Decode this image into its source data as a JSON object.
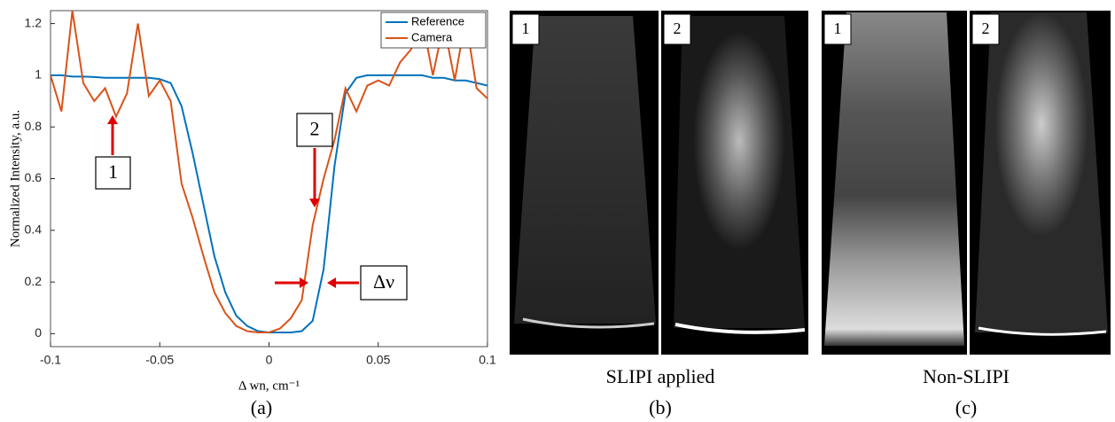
{
  "chart_data": {
    "type": "line",
    "x": [
      -0.1,
      -0.095,
      -0.09,
      -0.085,
      -0.08,
      -0.075,
      -0.07,
      -0.065,
      -0.06,
      -0.055,
      -0.05,
      -0.045,
      -0.04,
      -0.035,
      -0.03,
      -0.025,
      -0.02,
      -0.015,
      -0.01,
      -0.005,
      0,
      0.005,
      0.01,
      0.015,
      0.02,
      0.025,
      0.03,
      0.035,
      0.04,
      0.045,
      0.05,
      0.055,
      0.06,
      0.065,
      0.07,
      0.075,
      0.08,
      0.085,
      0.09,
      0.095,
      0.1
    ],
    "series": [
      {
        "name": "Reference",
        "color": "#0072bd",
        "values": [
          1.0,
          1.0,
          0.995,
          0.995,
          0.993,
          0.99,
          0.99,
          0.99,
          0.99,
          0.99,
          0.985,
          0.97,
          0.88,
          0.7,
          0.5,
          0.3,
          0.16,
          0.07,
          0.03,
          0.01,
          0.005,
          0.005,
          0.005,
          0.01,
          0.05,
          0.25,
          0.65,
          0.93,
          0.99,
          1.0,
          1.0,
          1.0,
          1.0,
          1.0,
          1.0,
          0.99,
          0.99,
          0.98,
          0.98,
          0.97,
          0.96
        ]
      },
      {
        "name": "Camera",
        "color": "#d95319",
        "values": [
          1.0,
          0.86,
          1.25,
          0.97,
          0.9,
          0.95,
          0.84,
          0.93,
          1.2,
          0.92,
          0.98,
          0.9,
          0.58,
          0.45,
          0.3,
          0.16,
          0.08,
          0.03,
          0.01,
          0.005,
          0.005,
          0.02,
          0.06,
          0.13,
          0.42,
          0.6,
          0.75,
          0.95,
          0.86,
          0.96,
          0.98,
          0.96,
          1.05,
          1.1,
          1.22,
          1.0,
          1.2,
          0.98,
          1.22,
          0.95,
          0.91
        ]
      }
    ],
    "xlim": [
      -0.1,
      0.1
    ],
    "xticks": [
      -0.1,
      -0.05,
      0,
      0.05,
      0.1
    ],
    "ylim": [
      -0.05,
      1.25
    ],
    "yticks": [
      0,
      0.2,
      0.4,
      0.6,
      0.8,
      1,
      1.2
    ],
    "xlabel": "Δ wn, cm⁻¹",
    "ylabel": "Normalized Intensity, a.u.",
    "legend": "top-right",
    "annotations": [
      "1",
      "2",
      "Δν"
    ],
    "caption": "(a)"
  },
  "panels": [
    {
      "images": [
        "1",
        "2"
      ],
      "caption": "SLIPI applied",
      "label": "(b)"
    },
    {
      "images": [
        "1",
        "2"
      ],
      "caption": "Non-SLIPI",
      "label": "(c)"
    }
  ]
}
